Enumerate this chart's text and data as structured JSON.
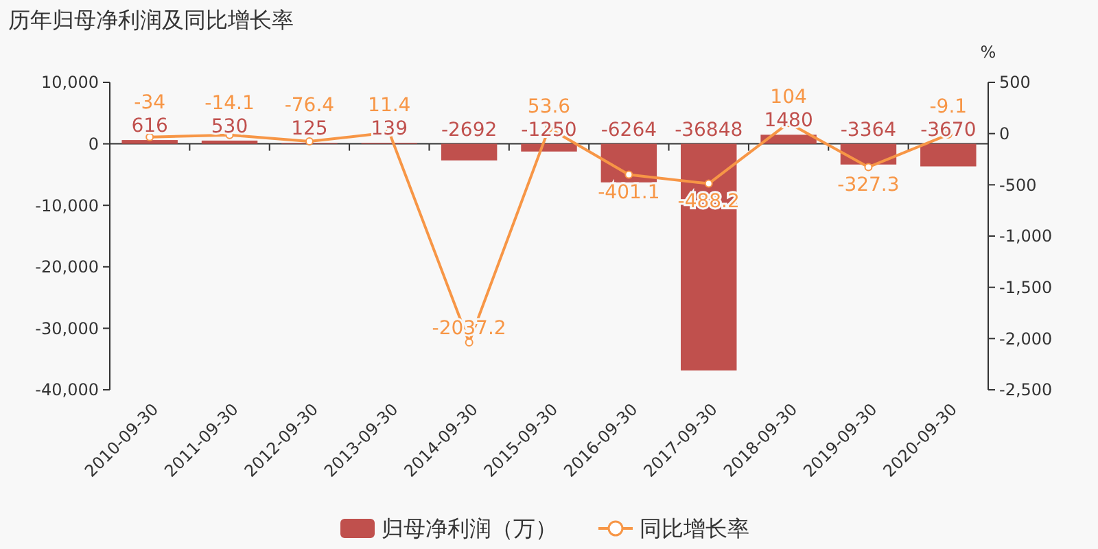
{
  "chart_data": {
    "type": "bar",
    "title": "历年归母净利润及同比增长率",
    "y2label": "%",
    "categories": [
      "2010-09-30",
      "2011-09-30",
      "2012-09-30",
      "2013-09-30",
      "2014-09-30",
      "2015-09-30",
      "2016-09-30",
      "2017-09-30",
      "2018-09-30",
      "2019-09-30",
      "2020-09-30"
    ],
    "series": [
      {
        "name": "归母净利润（万）",
        "color": "#c0504d",
        "values": [
          616,
          530,
          125,
          139,
          -2692,
          -1250,
          -6264,
          -36848,
          1480,
          -3364,
          -3670
        ]
      },
      {
        "name": "同比增长率",
        "type": "line",
        "axis": "y2",
        "color": "#f79646",
        "marker": "circle",
        "values": [
          -34,
          -14.1,
          -76.4,
          11.4,
          -2037.2,
          53.6,
          -401.1,
          -488.2,
          104,
          -327.3,
          -9.1
        ]
      }
    ],
    "data_labels": true,
    "ylim": [
      -40000,
      10000
    ],
    "yticks": [
      {
        "value": -40000,
        "label": "-40,000"
      },
      {
        "value": -30000,
        "label": "-30,000"
      },
      {
        "value": -20000,
        "label": "-20,000"
      },
      {
        "value": -10000,
        "label": "-10,000"
      },
      0,
      {
        "value": 10000,
        "label": "10,000"
      }
    ],
    "y2lim": [
      -2500,
      500
    ],
    "y2ticks": [
      {
        "value": -2500,
        "label": "-2,500"
      },
      {
        "value": -2000,
        "label": "-2,000"
      },
      {
        "value": -1500,
        "label": "-1,500"
      },
      {
        "value": -1000,
        "label": "-1,000"
      },
      -500,
      0,
      500
    ],
    "legend": "bottom"
  }
}
